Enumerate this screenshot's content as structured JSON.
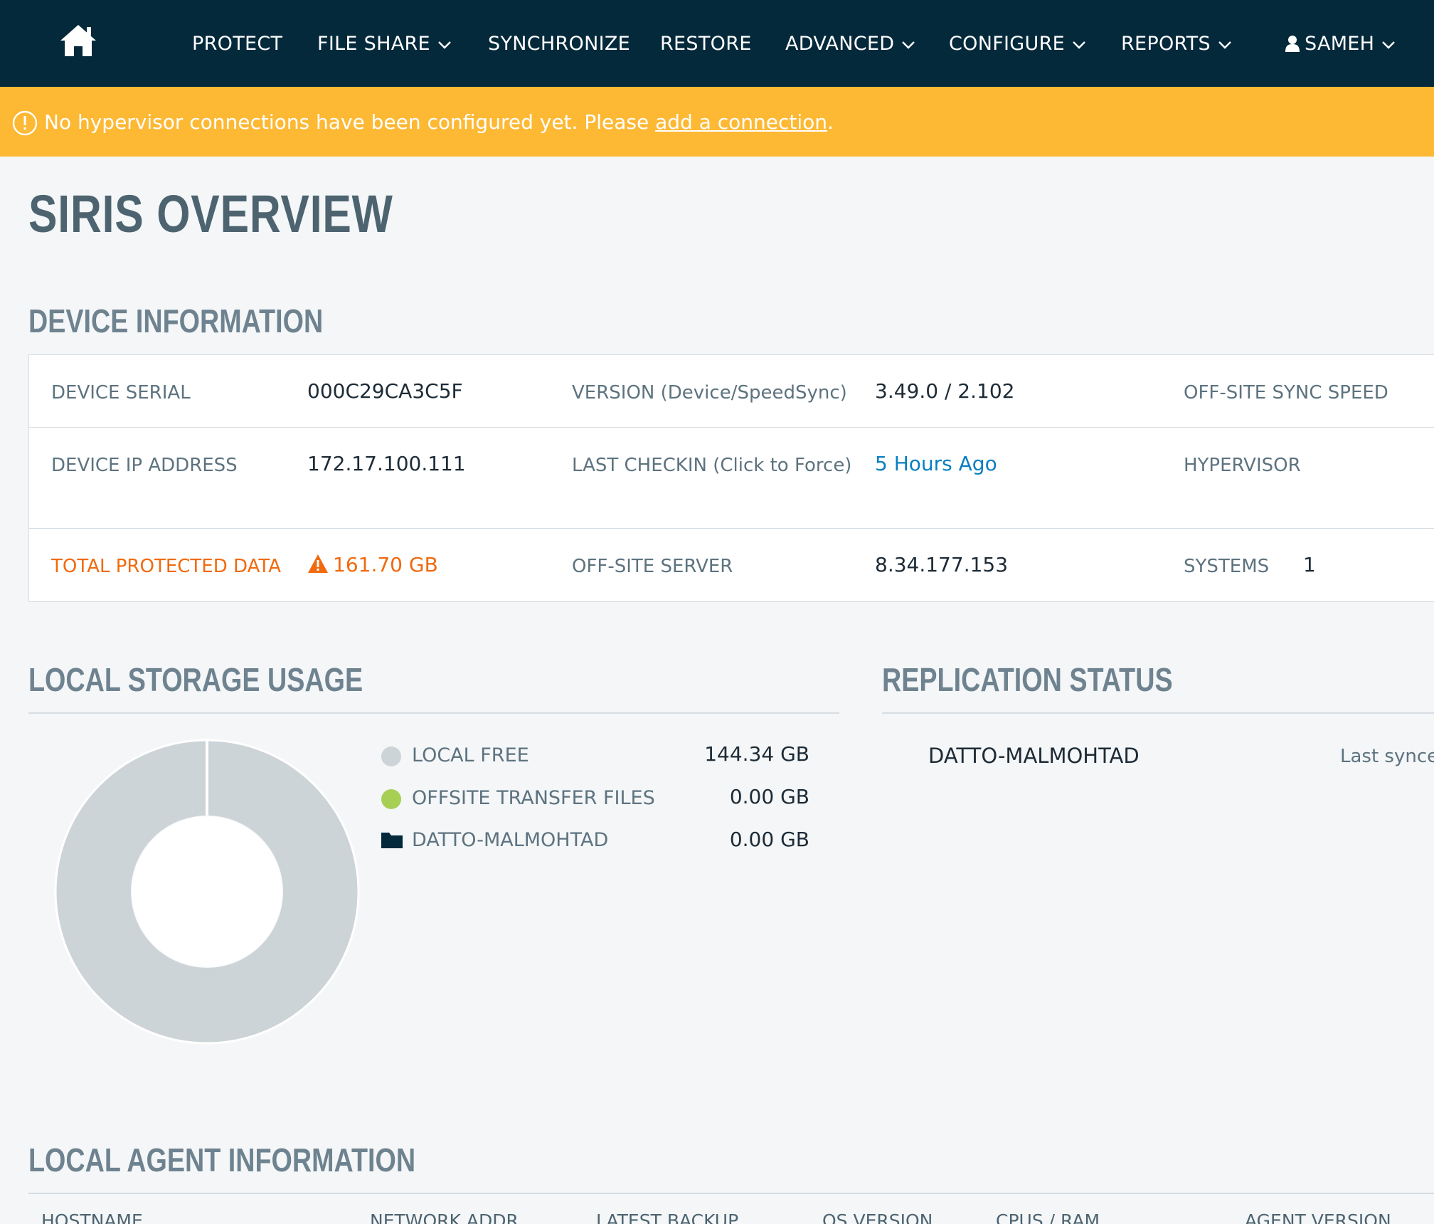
{
  "nav": {
    "items": [
      {
        "label": "PROTECT",
        "has_menu": false
      },
      {
        "label": "FILE SHARE",
        "has_menu": true
      },
      {
        "label": "SYNCHRONIZE",
        "has_menu": false
      },
      {
        "label": "RESTORE",
        "has_menu": false
      },
      {
        "label": "ADVANCED",
        "has_menu": true
      },
      {
        "label": "CONFIGURE",
        "has_menu": true
      },
      {
        "label": "REPORTS",
        "has_menu": true
      }
    ],
    "user": "SAMEH",
    "icons": {
      "home": "home-icon",
      "user": "user-icon",
      "menu": "chevron-down-icon"
    }
  },
  "alert": {
    "text": "No hypervisor connections have been configured yet. Please",
    "link": "add a connection",
    "suffix": ".",
    "color": "#fdb834",
    "icon": "info-circle-icon"
  },
  "page_title": "SIRIS OVERVIEW",
  "device_info": {
    "heading": "DEVICE INFORMATION",
    "rows": [
      [
        {
          "label": "DEVICE SERIAL",
          "value": "000C29CA3C5F"
        },
        {
          "label": "VERSION (Device/SpeedSync)",
          "value": "3.49.0 / 2.102"
        },
        {
          "label": "OFF-SITE SYNC SPEED",
          "value": ""
        }
      ],
      [
        {
          "label": "DEVICE IP ADDRESS",
          "value": "172.17.100.111"
        },
        {
          "label": "LAST CHECKIN (Click to Force)",
          "value": "5 Hours Ago"
        },
        {
          "label": "HYPERVISOR",
          "value": ""
        }
      ],
      [
        {
          "label": "TOTAL PROTECTED DATA",
          "value": "161.70 GB"
        },
        {
          "label": "OFF-SITE SERVER",
          "value": "8.34.177.153"
        },
        {
          "label": "SYSTEMS",
          "value": "1"
        }
      ]
    ],
    "warning_color": "#f06a0e",
    "link_color": "#0a7fc2"
  },
  "storage": {
    "heading": "LOCAL STORAGE USAGE",
    "legend": [
      {
        "label": "LOCAL FREE",
        "value": "144.34 GB",
        "color": "#cdd4d8",
        "icon": "dot"
      },
      {
        "label": "OFFSITE TRANSFER FILES",
        "value": "0.00 GB",
        "color": "#a6cf53",
        "icon": "dot"
      },
      {
        "label": "DATTO-MALMOHTAD",
        "value": "0.00 GB",
        "color": "#0a7fc2",
        "icon": "folder-icon"
      }
    ],
    "donut_color": "#cdd4d8"
  },
  "replication": {
    "heading": "REPLICATION STATUS",
    "name": "DATTO-MALMOHTAD",
    "status": "Last synce"
  },
  "agents": {
    "heading": "LOCAL AGENT INFORMATION",
    "columns": [
      "HOSTNAME",
      "NETWORK ADDR",
      "LATEST BACKUP",
      "OS VERSION",
      "CPUS / RAM",
      "AGENT VERSION"
    ]
  }
}
